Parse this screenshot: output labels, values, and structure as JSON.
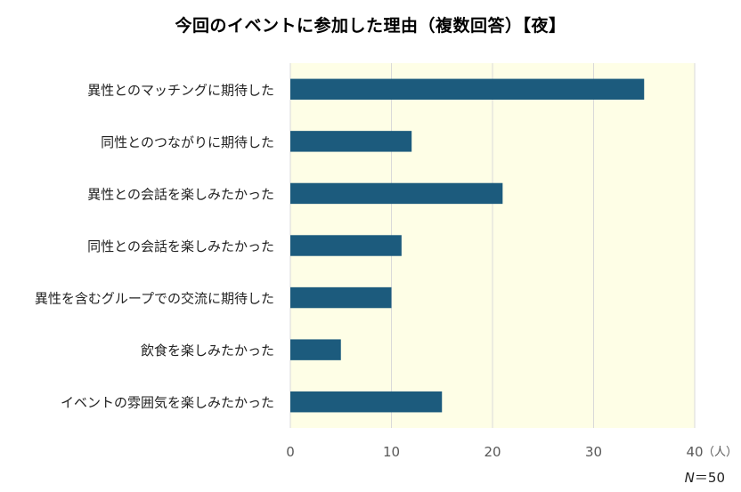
{
  "chart_data": {
    "type": "bar",
    "orientation": "horizontal",
    "title": "今回のイベントに参加した理由（複数回答）【夜】",
    "categories": [
      "異性とのマッチングに期待した",
      "同性とのつながりに期待した",
      "異性との会話を楽しみたかった",
      "同性との会話を楽しみたかった",
      "異性を含むグループでの交流に期待した",
      "飲食を楽しみたかった",
      "イベントの雰囲気を楽しみたかった"
    ],
    "values": [
      35,
      12,
      21,
      11,
      10,
      5,
      15
    ],
    "xlim": [
      0,
      40
    ],
    "xticks": [
      "0",
      "10",
      "20",
      "30",
      "40"
    ],
    "x_unit": "（人）",
    "grid": true,
    "legend": "none",
    "n_prefix": "N",
    "n_value": "＝50",
    "colors": {
      "bar": "#1c5b7d",
      "plot_background": "#fefee6",
      "gridline": "#d9d9d9"
    }
  }
}
